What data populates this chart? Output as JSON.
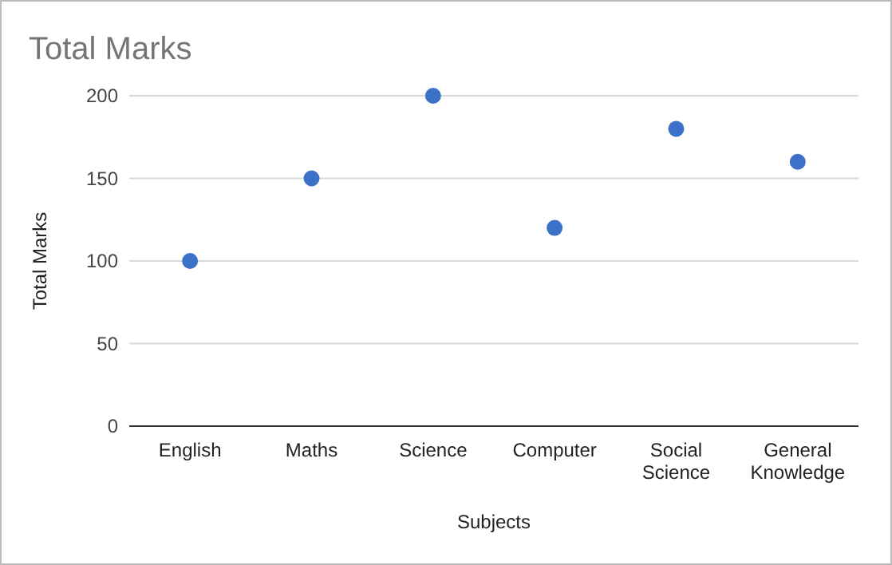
{
  "chart_data": {
    "type": "scatter",
    "title": "Total Marks",
    "xlabel": "Subjects",
    "ylabel": "Total Marks",
    "categories": [
      "English",
      "Maths",
      "Science",
      "Computer",
      "Social Science",
      "General Knowledge"
    ],
    "series": [
      {
        "color": "#3d71c8",
        "values": [
          100,
          150,
          200,
          120,
          180,
          160
        ]
      }
    ],
    "ylim": [
      0,
      200
    ],
    "yticks": [
      0,
      50,
      100,
      150,
      200
    ],
    "grid": "y",
    "marker": "circle"
  }
}
